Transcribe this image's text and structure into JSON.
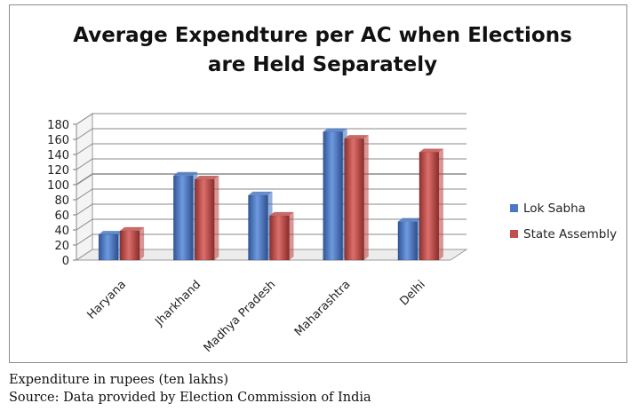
{
  "chart_data": {
    "type": "bar",
    "title_lines": [
      "Average Expendture per AC when Elections",
      "are Held Separately"
    ],
    "categories": [
      "Haryana",
      "Jharkhand",
      "Madhya Pradesh",
      "Maharashtra",
      "Delhi"
    ],
    "series": [
      {
        "name": "Lok Sabha",
        "color": "#4a78c2",
        "values": [
          34,
          112,
          86,
          170,
          51
        ]
      },
      {
        "name": "State Assembly",
        "color": "#c0504d",
        "values": [
          39,
          107,
          59,
          161,
          143
        ]
      }
    ],
    "ylim": [
      0,
      180
    ],
    "yticks": [
      0,
      20,
      40,
      60,
      80,
      100,
      120,
      140,
      160,
      180
    ],
    "xlabel": "",
    "ylabel": "",
    "legend_position": "right",
    "grid": true
  },
  "captions": {
    "unit_note": "Expenditure in rupees (ten lakhs)",
    "source": "Source: Data provided by Election Commission of India"
  }
}
